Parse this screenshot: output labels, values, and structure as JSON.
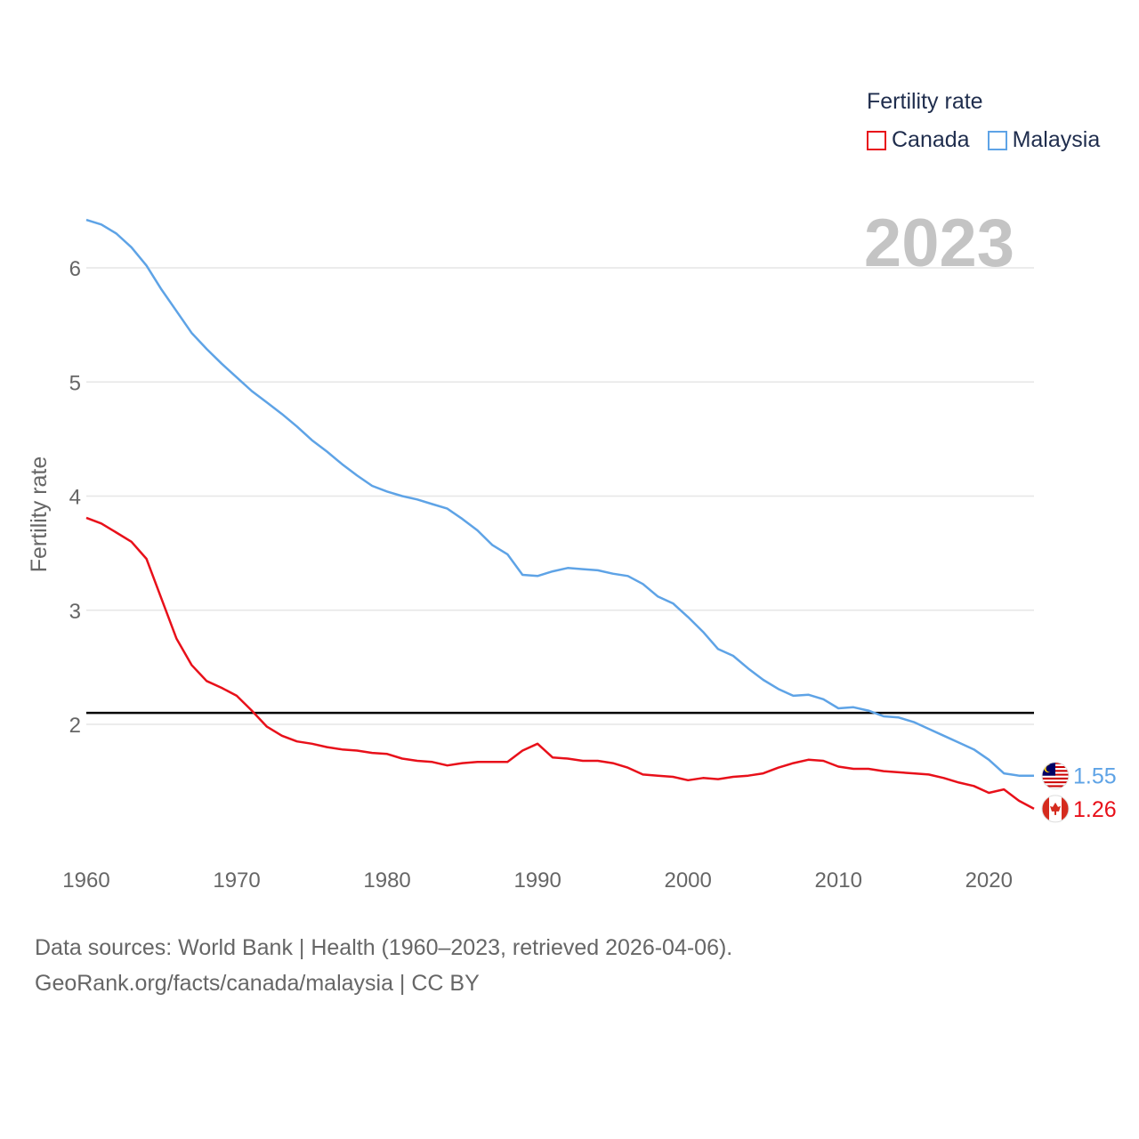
{
  "legend": {
    "title": "Fertility rate",
    "items": [
      {
        "name": "Canada",
        "color": "#e8101a"
      },
      {
        "name": "Malaysia",
        "color": "#5ea3e6"
      }
    ]
  },
  "year_label": "2023",
  "footer": {
    "line1": "Data sources: World Bank | Health (1960–2023, retrieved 2026-04-06).",
    "line2": "GeoRank.org/facts/canada/malaysia | CC BY"
  },
  "chart_data": {
    "type": "line",
    "title": "",
    "xlabel": "",
    "ylabel": "Fertility rate",
    "xlim": [
      1960,
      2023
    ],
    "ylim": [
      0.9,
      6.5
    ],
    "xticks": [
      1960,
      1970,
      1980,
      1990,
      2000,
      2010,
      2020
    ],
    "yticks": [
      2,
      3,
      4,
      5,
      6
    ],
    "reference_line": {
      "y": 2.1,
      "color": "#000000"
    },
    "x": [
      1960,
      1961,
      1962,
      1963,
      1964,
      1965,
      1966,
      1967,
      1968,
      1969,
      1970,
      1971,
      1972,
      1973,
      1974,
      1975,
      1976,
      1977,
      1978,
      1979,
      1980,
      1981,
      1982,
      1983,
      1984,
      1985,
      1986,
      1987,
      1988,
      1989,
      1990,
      1991,
      1992,
      1993,
      1994,
      1995,
      1996,
      1997,
      1998,
      1999,
      2000,
      2001,
      2002,
      2003,
      2004,
      2005,
      2006,
      2007,
      2008,
      2009,
      2010,
      2011,
      2012,
      2013,
      2014,
      2015,
      2016,
      2017,
      2018,
      2019,
      2020,
      2021,
      2022,
      2023
    ],
    "series": [
      {
        "name": "Canada",
        "color": "#e8101a",
        "end_label": "1.26",
        "values": [
          3.81,
          3.76,
          3.68,
          3.6,
          3.45,
          3.1,
          2.75,
          2.52,
          2.38,
          2.32,
          2.25,
          2.12,
          1.98,
          1.9,
          1.85,
          1.83,
          1.8,
          1.78,
          1.77,
          1.75,
          1.74,
          1.7,
          1.68,
          1.67,
          1.64,
          1.66,
          1.67,
          1.67,
          1.67,
          1.77,
          1.83,
          1.71,
          1.7,
          1.68,
          1.68,
          1.66,
          1.62,
          1.56,
          1.55,
          1.54,
          1.51,
          1.53,
          1.52,
          1.54,
          1.55,
          1.57,
          1.62,
          1.66,
          1.69,
          1.68,
          1.63,
          1.61,
          1.61,
          1.59,
          1.58,
          1.57,
          1.56,
          1.53,
          1.49,
          1.46,
          1.4,
          1.43,
          1.33,
          1.26
        ]
      },
      {
        "name": "Malaysia",
        "color": "#5ea3e6",
        "end_label": "1.55",
        "values": [
          6.42,
          6.38,
          6.3,
          6.18,
          6.02,
          5.81,
          5.62,
          5.43,
          5.29,
          5.16,
          5.04,
          4.92,
          4.82,
          4.72,
          4.61,
          4.49,
          4.39,
          4.28,
          4.18,
          4.09,
          4.04,
          4.0,
          3.97,
          3.93,
          3.89,
          3.8,
          3.7,
          3.57,
          3.49,
          3.31,
          3.3,
          3.34,
          3.37,
          3.36,
          3.35,
          3.32,
          3.3,
          3.23,
          3.12,
          3.06,
          2.94,
          2.81,
          2.66,
          2.6,
          2.49,
          2.39,
          2.31,
          2.25,
          2.26,
          2.22,
          2.14,
          2.15,
          2.12,
          2.07,
          2.06,
          2.02,
          1.96,
          1.9,
          1.84,
          1.78,
          1.69,
          1.57,
          1.55,
          1.55
        ]
      }
    ]
  }
}
